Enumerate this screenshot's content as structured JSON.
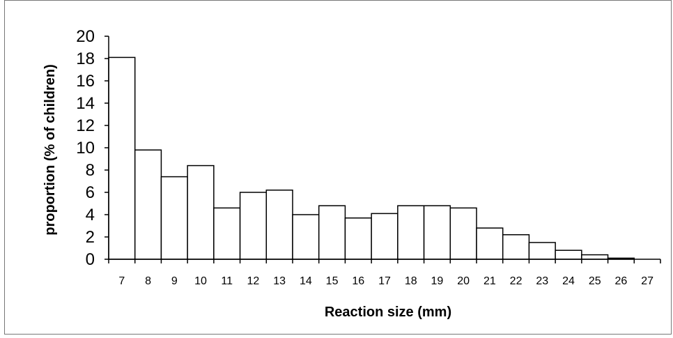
{
  "chart_data": {
    "type": "bar",
    "title": "",
    "xlabel": "Reaction size (mm)",
    "ylabel": "proportion (% of children)",
    "categories": [
      "7",
      "8",
      "9",
      "10",
      "11",
      "12",
      "13",
      "14",
      "15",
      "16",
      "17",
      "18",
      "19",
      "20",
      "21",
      "22",
      "23",
      "24",
      "25",
      "26"
    ],
    "x_tick_labels": [
      "7",
      "8",
      "9",
      "10",
      "11",
      "12",
      "13",
      "14",
      "15",
      "16",
      "17",
      "18",
      "19",
      "20",
      "21",
      "22",
      "23",
      "24",
      "25",
      "26",
      "27"
    ],
    "values": [
      18.1,
      9.8,
      7.4,
      8.4,
      4.6,
      6.0,
      6.2,
      4.0,
      4.8,
      3.7,
      4.1,
      4.8,
      4.8,
      4.6,
      2.8,
      2.2,
      1.5,
      0.8,
      0.4,
      0.1
    ],
    "ylim": [
      0,
      20
    ],
    "y_ticks": [
      0,
      2,
      4,
      6,
      8,
      10,
      12,
      14,
      16,
      18,
      20
    ],
    "grid": false,
    "legend": "none",
    "bar_fill": "#ffffff",
    "bar_stroke": "#000000"
  }
}
